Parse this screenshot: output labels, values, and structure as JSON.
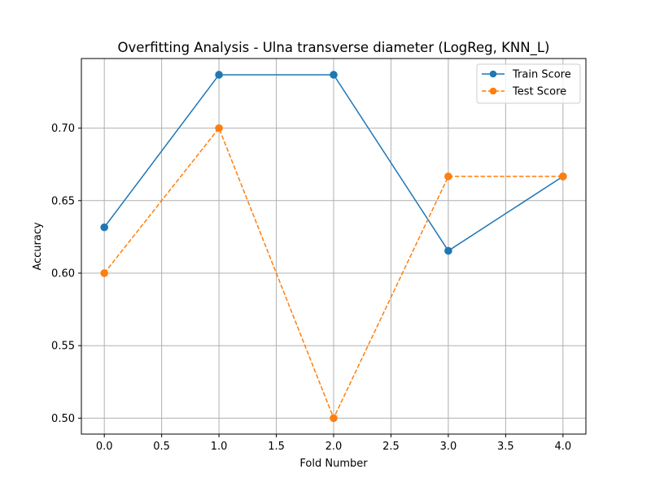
{
  "chart_data": {
    "type": "line",
    "title": "Overfitting Analysis - Ulna transverse diameter (LogReg, KNN_L)",
    "xlabel": "Fold Number",
    "ylabel": "Accuracy",
    "xlim": [
      -0.2,
      4.2
    ],
    "ylim": [
      0.489,
      0.748
    ],
    "xticks": [
      0.0,
      0.5,
      1.0,
      1.5,
      2.0,
      2.5,
      3.0,
      3.5,
      4.0
    ],
    "xtick_labels": [
      "0.0",
      "0.5",
      "1.0",
      "1.5",
      "2.0",
      "2.5",
      "3.0",
      "3.5",
      "4.0"
    ],
    "yticks": [
      0.5,
      0.55,
      0.6,
      0.65,
      0.7
    ],
    "ytick_labels": [
      "0.50",
      "0.55",
      "0.60",
      "0.65",
      "0.70"
    ],
    "grid": true,
    "legend_position": "top-right",
    "x": [
      0,
      1,
      2,
      3,
      4
    ],
    "series": [
      {
        "name": "Train Score",
        "values": [
          0.6316,
          0.7368,
          0.7368,
          0.6154,
          0.6667
        ],
        "color": "#1f77b4",
        "linestyle": "solid",
        "marker": "circle"
      },
      {
        "name": "Test Score",
        "values": [
          0.6,
          0.7,
          0.5,
          0.6667,
          0.6667
        ],
        "color": "#ff7f0e",
        "linestyle": "dashed",
        "marker": "circle"
      }
    ]
  }
}
